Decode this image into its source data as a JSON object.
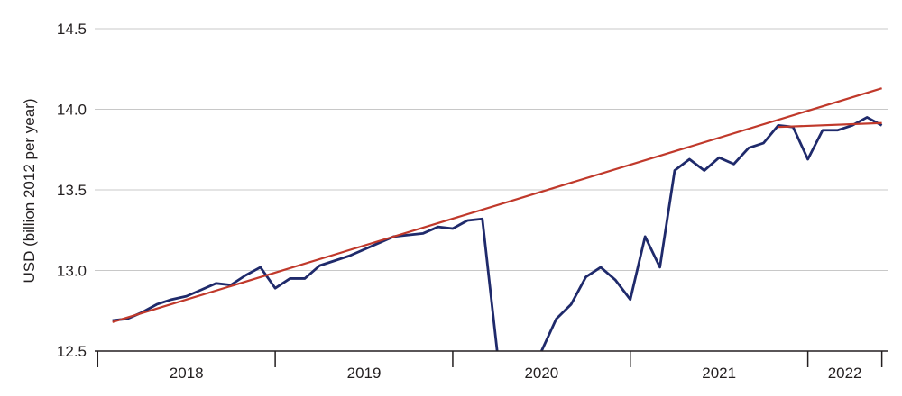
{
  "chart_data": {
    "type": "line",
    "title": "",
    "xlabel": "",
    "ylabel": "USD (billion 2012 per year)",
    "ylim": [
      12.5,
      14.5
    ],
    "yticks": [
      "12.5",
      "13.0",
      "13.5",
      "14.0",
      "14.5"
    ],
    "xlim": [
      "2017-12",
      "2022-05"
    ],
    "grid": true,
    "legend": "none",
    "colors": {
      "series": "#1f2a6b",
      "trend": "#c0392b",
      "grid": "#c8c8c8",
      "axis": "#231f20"
    },
    "year_labels": [
      {
        "label": "2018",
        "start": "2017-12",
        "end": "2018-12"
      },
      {
        "label": "2019",
        "start": "2018-12",
        "end": "2019-12"
      },
      {
        "label": "2020",
        "start": "2019-12",
        "end": "2020-12"
      },
      {
        "label": "2021",
        "start": "2020-12",
        "end": "2021-12"
      },
      {
        "label": "2022",
        "start": "2021-12",
        "end": "2022-05"
      }
    ],
    "series": [
      {
        "x": [
          "2018-01",
          "2018-02",
          "2018-03",
          "2018-04",
          "2018-05",
          "2018-06",
          "2018-07",
          "2018-08",
          "2018-09",
          "2018-10",
          "2018-11",
          "2018-12",
          "2019-01",
          "2019-02",
          "2019-03",
          "2019-04",
          "2019-05",
          "2019-06",
          "2019-07",
          "2019-08",
          "2019-09",
          "2019-10",
          "2019-11",
          "2019-12",
          "2020-01",
          "2020-02",
          "2020-03",
          "2020-04",
          "2020-05",
          "2020-06",
          "2020-07",
          "2020-08",
          "2020-09",
          "2020-10",
          "2020-11",
          "2020-12",
          "2021-01",
          "2021-02",
          "2021-03",
          "2021-04",
          "2021-05",
          "2021-06",
          "2021-07",
          "2021-08",
          "2021-09",
          "2021-10",
          "2021-11",
          "2021-12",
          "2022-01",
          "2022-02",
          "2022-03",
          "2022-04",
          "2022-05"
        ],
        "values": [
          12.69,
          12.7,
          12.74,
          12.79,
          12.82,
          12.84,
          12.88,
          12.92,
          12.91,
          12.97,
          13.02,
          12.89,
          12.95,
          12.95,
          13.03,
          13.06,
          13.09,
          13.13,
          13.17,
          13.21,
          13.22,
          13.23,
          13.27,
          13.26,
          13.31,
          13.32,
          12.5,
          null,
          null,
          12.5,
          12.7,
          12.79,
          12.96,
          13.02,
          12.94,
          12.82,
          13.21,
          13.02,
          13.62,
          13.69,
          13.62,
          13.7,
          13.66,
          13.76,
          13.79,
          13.9,
          13.89,
          13.69,
          13.87,
          13.87,
          13.9,
          13.95,
          13.9
        ]
      },
      {
        "x": [
          "2018-01",
          "2022-05"
        ],
        "values": [
          12.68,
          14.13
        ]
      },
      {
        "x": [
          "2021-10",
          "2022-05"
        ],
        "values": [
          13.89,
          13.915
        ]
      }
    ]
  }
}
